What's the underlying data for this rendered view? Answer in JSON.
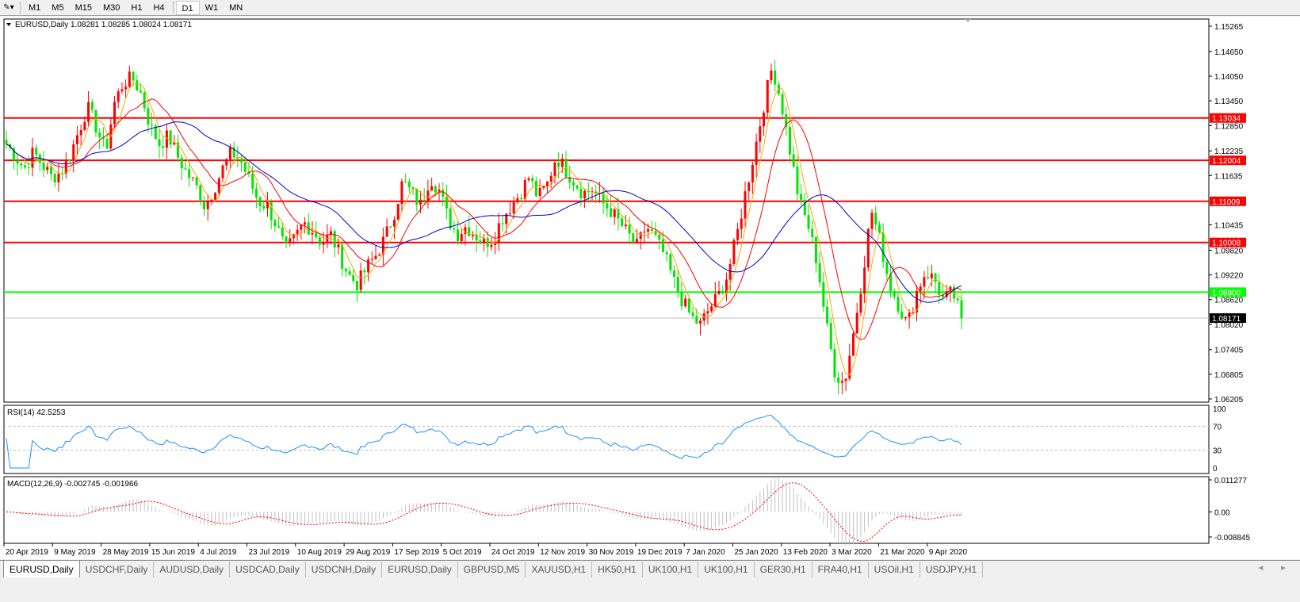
{
  "toolbar": {
    "timeframes": [
      "M1",
      "M5",
      "M15",
      "M30",
      "H1",
      "H4",
      "D1",
      "W1",
      "MN"
    ],
    "active": "D1"
  },
  "chart": {
    "header": "EURUSD,Daily  1.08281 1.08285 1.08024 1.08171",
    "symbol": "EURUSD",
    "timeframe": "Daily",
    "ohlc": {
      "open": "1.08281",
      "high": "1.08285",
      "low": "1.08024",
      "close": "1.08171"
    },
    "price_ticks": [
      "1.15265",
      "1.14650",
      "1.14050",
      "1.13450",
      "1.12850",
      "1.12235",
      "1.11635",
      "1.10435",
      "1.09820",
      "1.09220",
      "1.08620",
      "1.08020",
      "1.07405",
      "1.06805",
      "1.06205"
    ],
    "price_range": [
      1.06205,
      1.15265
    ],
    "horizontal_lines": [
      {
        "price": "1.13034",
        "color": "#ff0000"
      },
      {
        "price": "1.12004",
        "color": "#ff0000"
      },
      {
        "price": "1.11009",
        "color": "#ff0000"
      },
      {
        "price": "1.10008",
        "color": "#ff0000"
      },
      {
        "price": "1.08800",
        "color": "#00ff00"
      }
    ],
    "current_price": "1.08171",
    "bull_color": "#ff0000",
    "bear_color": "#00e600",
    "ma_colors": {
      "fast": "#ffa500",
      "medium": "#ff0000",
      "slow": "#0000cc"
    },
    "close_path": [
      1.124,
      1.121,
      1.118,
      1.122,
      1.119,
      1.116,
      1.117,
      1.121,
      1.127,
      1.133,
      1.128,
      1.122,
      1.134,
      1.139,
      1.14,
      1.136,
      1.128,
      1.124,
      1.126,
      1.121,
      1.117,
      1.114,
      1.109,
      1.113,
      1.118,
      1.122,
      1.12,
      1.115,
      1.11,
      1.109,
      1.104,
      1.098,
      1.101,
      1.105,
      1.103,
      1.1,
      1.102,
      1.097,
      1.092,
      1.09,
      1.094,
      1.097,
      1.101,
      1.107,
      1.115,
      1.112,
      1.109,
      1.116,
      1.113,
      1.106,
      1.102,
      1.104,
      1.102,
      1.1,
      1.101,
      1.106,
      1.109,
      1.112,
      1.116,
      1.111,
      1.114,
      1.121,
      1.118,
      1.115,
      1.112,
      1.113,
      1.11,
      1.108,
      1.105,
      1.102,
      1.099,
      1.104,
      1.101,
      1.097,
      1.091,
      1.086,
      1.082,
      1.08,
      1.084,
      1.087,
      1.092,
      1.101,
      1.112,
      1.122,
      1.133,
      1.143,
      1.134,
      1.122,
      1.11,
      1.104,
      1.095,
      1.08,
      1.068,
      1.066,
      1.078,
      1.092,
      1.108,
      1.1,
      1.09,
      1.085,
      1.08,
      1.088,
      1.093,
      1.091,
      1.086,
      1.088,
      1.0817
    ]
  },
  "rsi": {
    "label": "RSI(14) 42.5253",
    "ticks": [
      "100",
      "70",
      "30",
      "0"
    ],
    "color": "#1e90ff",
    "levels": [
      70,
      30
    ]
  },
  "macd": {
    "label": "MACD(12,26,9) -0.002745 -0.001966",
    "ticks": [
      "0.011277",
      "0.00",
      "-0.008845"
    ],
    "range": [
      -0.008845,
      0.011277
    ],
    "histogram_color": "#c0c0c0",
    "signal_color": "#ff0000"
  },
  "date_ticks": [
    "20 Apr 2019",
    "9 May 2019",
    "28 May 2019",
    "15 Jun 2019",
    "4 Jul 2019",
    "23 Jul 2019",
    "10 Aug 2019",
    "29 Aug 2019",
    "17 Sep 2019",
    "5 Oct 2019",
    "24 Oct 2019",
    "12 Nov 2019",
    "30 Nov 2019",
    "19 Dec 2019",
    "7 Jan 2020",
    "25 Jan 2020",
    "13 Feb 2020",
    "3 Mar 2020",
    "21 Mar 2020",
    "9 Apr 2020"
  ],
  "tabs": [
    "EURUSD,Daily",
    "USDCHF,Daily",
    "AUDUSD,Daily",
    "USDCAD,Daily",
    "USDCNH,Daily",
    "EURUSD,Daily",
    "GBPUSD,M5",
    "XAUUSD,H1",
    "HK50,H1",
    "UK100,H1",
    "UK100,H1",
    "GER30,H1",
    "FRA40,H1",
    "USOil,H1",
    "USDJPY,H1"
  ],
  "active_tab": 0,
  "tab_nav": "◄ ►"
}
